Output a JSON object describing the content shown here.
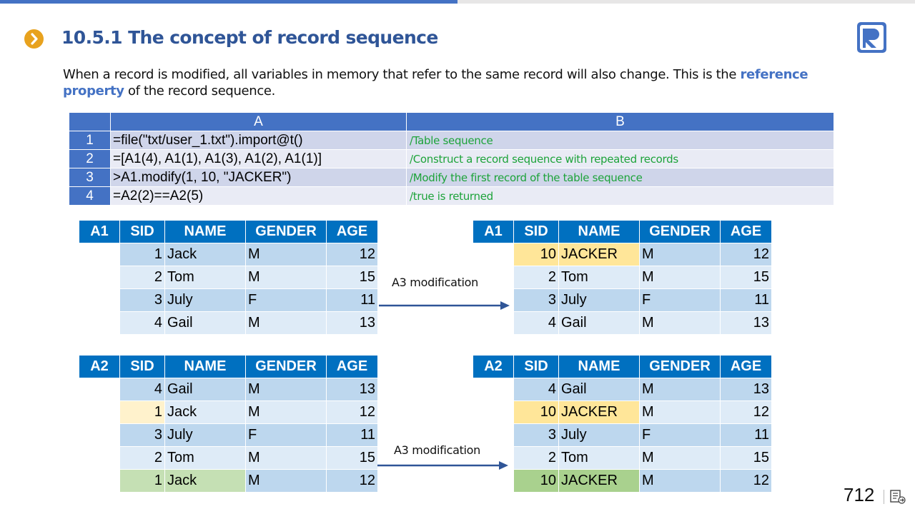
{
  "header": {
    "title": "10.5.1 The concept of record sequence"
  },
  "intro": {
    "before": "When a record is modified, all variables in memory that refer to the same record will also change. This is the ",
    "highlight": "reference property",
    "after": " of the record sequence."
  },
  "grid": {
    "columns": [
      "A",
      "B"
    ],
    "rows": [
      {
        "num": "1",
        "code": "=file(\"txt/user_1.txt\").import@t()",
        "comment": "/Table sequence"
      },
      {
        "num": "2",
        "code": "=[A1(4), A1(1), A1(3), A1(2), A1(1)]",
        "comment": "/Construct a record sequence with repeated records"
      },
      {
        "num": "3",
        "code": ">A1.modify(1,  10, \"JACKER\")",
        "comment": "/Modify the first record of the table sequence"
      },
      {
        "num": "4",
        "code": "=A2(2)==A2(5)",
        "comment": "/true is returned"
      }
    ]
  },
  "tables": {
    "headers": [
      "SID",
      "NAME",
      "GENDER",
      "AGE"
    ],
    "a1_before": {
      "label": "A1",
      "rows": [
        [
          "1",
          "Jack",
          "M",
          "12"
        ],
        [
          "2",
          "Tom",
          "M",
          "15"
        ],
        [
          "3",
          "July",
          "F",
          "11"
        ],
        [
          "4",
          "Gail",
          "M",
          "13"
        ]
      ]
    },
    "a1_after": {
      "label": "A1",
      "rows": [
        [
          "10",
          "JACKER",
          "M",
          "12"
        ],
        [
          "2",
          "Tom",
          "M",
          "15"
        ],
        [
          "3",
          "July",
          "F",
          "11"
        ],
        [
          "4",
          "Gail",
          "M",
          "13"
        ]
      ]
    },
    "a2_before": {
      "label": "A2",
      "rows": [
        [
          "4",
          "Gail",
          "M",
          "13"
        ],
        [
          "1",
          "Jack",
          "M",
          "12"
        ],
        [
          "3",
          "July",
          "F",
          "11"
        ],
        [
          "2",
          "Tom",
          "M",
          "15"
        ],
        [
          "1",
          "Jack",
          "M",
          "12"
        ]
      ]
    },
    "a2_after": {
      "label": "A2",
      "rows": [
        [
          "4",
          "Gail",
          "M",
          "13"
        ],
        [
          "10",
          "JACKER",
          "M",
          "12"
        ],
        [
          "3",
          "July",
          "F",
          "11"
        ],
        [
          "2",
          "Tom",
          "M",
          "15"
        ],
        [
          "10",
          "JACKER",
          "M",
          "12"
        ]
      ]
    }
  },
  "notes": {
    "mod_top": "A3 modification",
    "mod_bottom": "A3 modification"
  },
  "footer": {
    "page": "712"
  },
  "colors": {
    "accent": "#4472C4",
    "header_blue": "#0070C0",
    "bullet": "#E8A21E",
    "comment_green": "#1DA33A",
    "highlight_yellow": "#FFE699",
    "highlight_green": "#A9D18E"
  }
}
